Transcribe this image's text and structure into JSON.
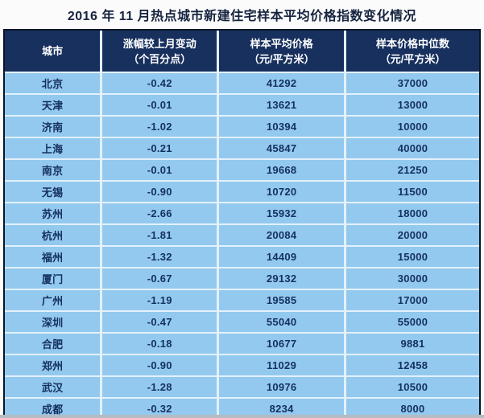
{
  "page": {
    "title": "2016 年 11 月热点城市新建住宅样本平均价格指数变化情况"
  },
  "table": {
    "columns": [
      {
        "line1": "城市",
        "line2": ""
      },
      {
        "line1": "涨幅较上月变动",
        "line2": "（个百分点）"
      },
      {
        "line1": "样本平均价格",
        "line2": "（元/平方米）"
      },
      {
        "line1": "样本价格中位数",
        "line2": "（元/平方米）"
      }
    ],
    "rows": [
      {
        "city": "北京",
        "change": "-0.42",
        "avg_price": "41292",
        "median_price": "37000"
      },
      {
        "city": "天津",
        "change": "-0.01",
        "avg_price": "13621",
        "median_price": "13000"
      },
      {
        "city": "济南",
        "change": "-1.02",
        "avg_price": "10394",
        "median_price": "10000"
      },
      {
        "city": "上海",
        "change": "-0.21",
        "avg_price": "45847",
        "median_price": "40000"
      },
      {
        "city": "南京",
        "change": "-0.01",
        "avg_price": "19668",
        "median_price": "21250"
      },
      {
        "city": "无锡",
        "change": "-0.90",
        "avg_price": "10720",
        "median_price": "11500"
      },
      {
        "city": "苏州",
        "change": "-2.66",
        "avg_price": "15932",
        "median_price": "18000"
      },
      {
        "city": "杭州",
        "change": "-1.81",
        "avg_price": "20084",
        "median_price": "20000"
      },
      {
        "city": "福州",
        "change": "-1.32",
        "avg_price": "14409",
        "median_price": "15000"
      },
      {
        "city": "厦门",
        "change": "-0.67",
        "avg_price": "29132",
        "median_price": "30000"
      },
      {
        "city": "广州",
        "change": "-1.19",
        "avg_price": "19585",
        "median_price": "17000"
      },
      {
        "city": "深圳",
        "change": "-0.47",
        "avg_price": "55040",
        "median_price": "55000"
      },
      {
        "city": "合肥",
        "change": "-0.18",
        "avg_price": "10677",
        "median_price": "9881"
      },
      {
        "city": "郑州",
        "change": "-0.90",
        "avg_price": "11029",
        "median_price": "12458"
      },
      {
        "city": "武汉",
        "change": "-1.28",
        "avg_price": "10976",
        "median_price": "10500"
      },
      {
        "city": "成都",
        "change": "-0.32",
        "avg_price": "8234",
        "median_price": "8000"
      }
    ]
  },
  "colors": {
    "header_bg": "#17305e",
    "row_bg": "#93c9ee",
    "grid": "#e3f1fb",
    "outer_border": "#0a1626",
    "cell_text": "#14305f",
    "title_text": "#16233f"
  },
  "chart_data": {
    "type": "table",
    "title": "2016 年 11 月热点城市新建住宅样本平均价格指数变化情况",
    "columns": [
      "城市",
      "涨幅较上月变动（个百分点）",
      "样本平均价格（元/平方米）",
      "样本价格中位数（元/平方米）"
    ],
    "rows": [
      [
        "北京",
        -0.42,
        41292,
        37000
      ],
      [
        "天津",
        -0.01,
        13621,
        13000
      ],
      [
        "济南",
        -1.02,
        10394,
        10000
      ],
      [
        "上海",
        -0.21,
        45847,
        40000
      ],
      [
        "南京",
        -0.01,
        19668,
        21250
      ],
      [
        "无锡",
        -0.9,
        10720,
        11500
      ],
      [
        "苏州",
        -2.66,
        15932,
        18000
      ],
      [
        "杭州",
        -1.81,
        20084,
        20000
      ],
      [
        "福州",
        -1.32,
        14409,
        15000
      ],
      [
        "厦门",
        -0.67,
        29132,
        30000
      ],
      [
        "广州",
        -1.19,
        19585,
        17000
      ],
      [
        "深圳",
        -0.47,
        55040,
        55000
      ],
      [
        "合肥",
        -0.18,
        10677,
        9881
      ],
      [
        "郑州",
        -0.9,
        11029,
        12458
      ],
      [
        "武汉",
        -1.28,
        10976,
        10500
      ],
      [
        "成都",
        -0.32,
        8234,
        8000
      ]
    ]
  }
}
